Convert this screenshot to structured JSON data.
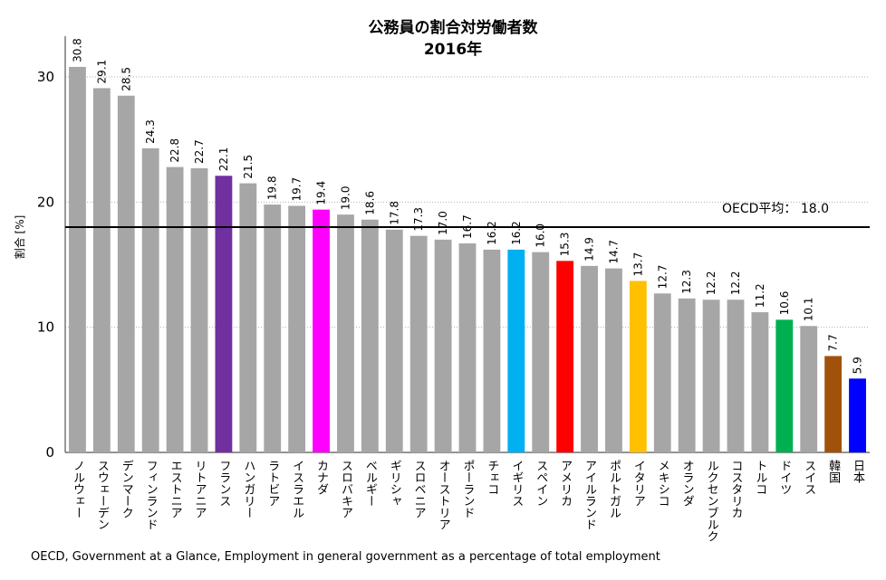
{
  "chart_data": {
    "type": "bar",
    "title": "公務員の割合対労働者数",
    "subtitle": "2016年",
    "ylabel": "割合 [%]",
    "xlabel": "",
    "ylim": [
      0,
      33
    ],
    "yticks": [
      0,
      10,
      20,
      30
    ],
    "grid": true,
    "categories": [
      "ノルウェー",
      "スウェーデン",
      "デンマーク",
      "フィンランド",
      "エストニア",
      "リトアニア",
      "フランス",
      "ハンガリー",
      "ラトビア",
      "イスラエル",
      "カナダ",
      "スロバキア",
      "ベルギー",
      "ギリシャ",
      "スロベニア",
      "オーストリア",
      "ポーランド",
      "チェコ",
      "イギリス",
      "スペイン",
      "アメリカ",
      "アイルランド",
      "ポルトガル",
      "イタリア",
      "メキシコ",
      "オランダ",
      "ルクセンブルク",
      "コスタリカ",
      "トルコ",
      "ドイツ",
      "スイス",
      "韓国",
      "日本"
    ],
    "values": [
      30.8,
      29.1,
      28.5,
      24.3,
      22.8,
      22.7,
      22.1,
      21.5,
      19.8,
      19.7,
      19.4,
      19.0,
      18.6,
      17.8,
      17.3,
      17.0,
      16.7,
      16.2,
      16.2,
      16.0,
      15.3,
      14.9,
      14.7,
      13.7,
      12.7,
      12.3,
      12.2,
      12.2,
      11.2,
      10.6,
      10.1,
      7.7,
      5.9
    ],
    "value_labels": [
      "30.8",
      "29.1",
      "28.5",
      "24.3",
      "22.8",
      "22.7",
      "22.1",
      "21.5",
      "19.8",
      "19.7",
      "19.4",
      "19.0",
      "18.6",
      "17.8",
      "17.3",
      "17.0",
      "16.7",
      "16.2",
      "16.2",
      "16.0",
      "15.3",
      "14.9",
      "14.7",
      "13.7",
      "12.7",
      "12.3",
      "12.2",
      "12.2",
      "11.2",
      "10.6",
      "10.1",
      "7.7",
      "5.9"
    ],
    "colors": [
      "#a6a6a6",
      "#a6a6a6",
      "#a6a6a6",
      "#a6a6a6",
      "#a6a6a6",
      "#a6a6a6",
      "#7030a0",
      "#a6a6a6",
      "#a6a6a6",
      "#a6a6a6",
      "#ff00ff",
      "#a6a6a6",
      "#a6a6a6",
      "#a6a6a6",
      "#a6a6a6",
      "#a6a6a6",
      "#a6a6a6",
      "#a6a6a6",
      "#00b0f0",
      "#a6a6a6",
      "#ff0000",
      "#a6a6a6",
      "#a6a6a6",
      "#ffc000",
      "#a6a6a6",
      "#a6a6a6",
      "#a6a6a6",
      "#a6a6a6",
      "#a6a6a6",
      "#00b050",
      "#a6a6a6",
      "#a0520a",
      "#0000ff"
    ],
    "reference_line": {
      "label": "OECD平均：  18.0",
      "value": 18.0
    },
    "source": "OECD, Government at a Glance, Employment in general government as a percentage of total employment"
  }
}
